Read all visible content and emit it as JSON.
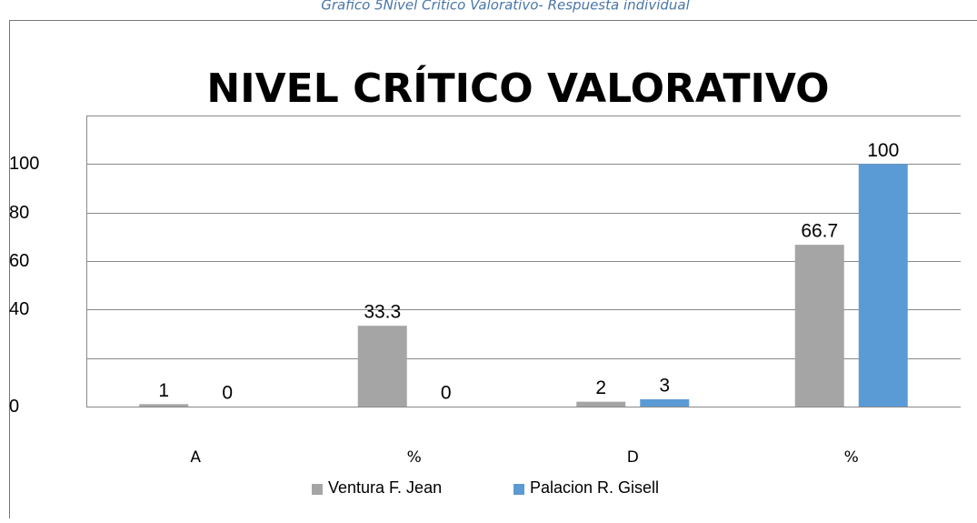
{
  "caption": "Grafico 5Nivel Crítico Valorativo- Respuesta individual",
  "chart_data": {
    "type": "bar",
    "title": "NIVEL CRÍTICO VALORATIVO",
    "categories": [
      "A",
      "%",
      "D",
      "%"
    ],
    "series": [
      {
        "name": "Ventura F. Jean",
        "color": "#a5a5a5",
        "values": [
          1,
          33.3,
          2,
          66.7
        ]
      },
      {
        "name": "Palacion R. Gisell",
        "color": "#5b9bd5",
        "values": [
          0,
          0,
          3,
          100
        ]
      }
    ],
    "ylim": [
      0,
      120
    ],
    "yticks": [
      0,
      {
        "value": 20,
        "label": null
      },
      40,
      60,
      80,
      100,
      {
        "value": 120,
        "label": null
      }
    ],
    "grid": true,
    "legend": "bottom"
  }
}
